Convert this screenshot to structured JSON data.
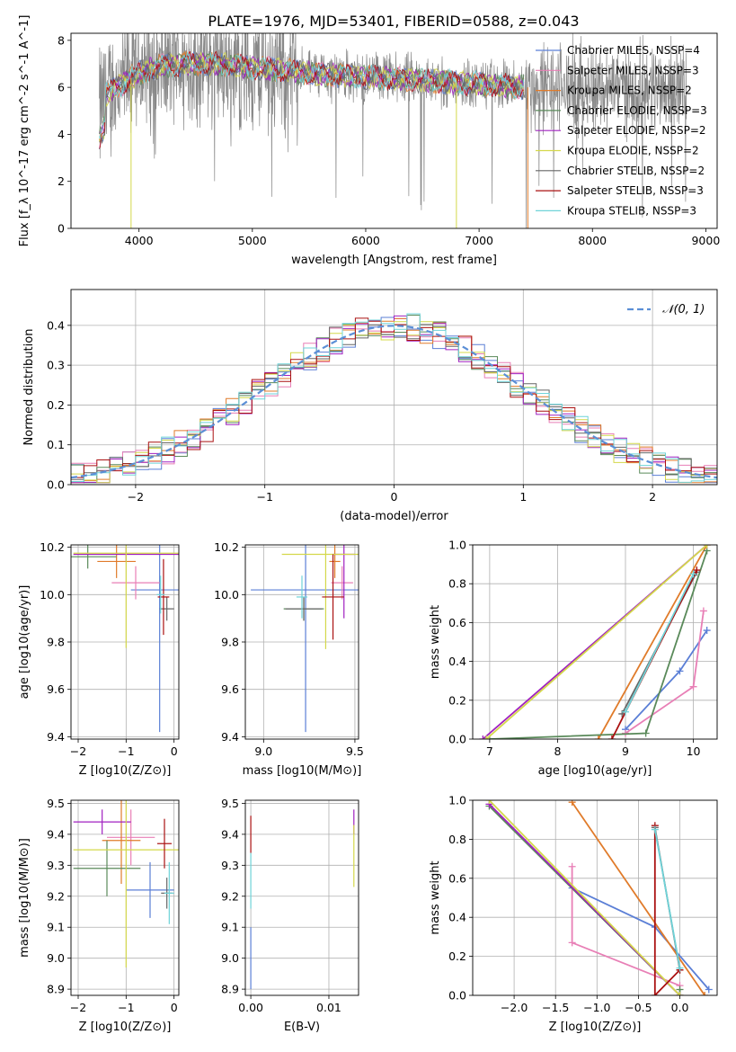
{
  "figure": {
    "title": "PLATE=1976, MJD=53401, FIBERID=0588, z=0.043"
  },
  "colors": {
    "Chabrier MILES": "#5b7fd6",
    "Salpeter MILES": "#e87fb6",
    "Kroupa MILES": "#e07b2a",
    "Chabrier ELODIE": "#5a8a5a",
    "Salpeter ELODIE": "#a020c0",
    "Kroupa ELODIE": "#d4d84a",
    "Chabrier STELIB": "#666666",
    "Salpeter STELIB": "#aa1111",
    "Kroupa STELIB": "#6fd3d8",
    "data": "#888888",
    "gaussian": "#5b8fd6"
  },
  "chart_data": [
    {
      "panel": "spectrum",
      "type": "line",
      "xlabel": "wavelength [Angstrom, rest frame]",
      "ylabel": "Flux [f_λ 10^-17 erg cm^-2 s^-1 A^-1]",
      "xlim": [
        3400,
        9100
      ],
      "ylim": [
        0,
        8.3
      ],
      "xticks": [
        4000,
        5000,
        6000,
        7000,
        8000,
        9000
      ],
      "yticks": [
        0,
        2,
        4,
        6,
        8
      ],
      "legend_position": "upper right",
      "legend": [
        "Chabrier MILES, N_SSP=4",
        "Salpeter MILES, N_SSP=3",
        "Kroupa MILES, N_SSP=2",
        "Chabrier ELODIE, N_SSP=3",
        "Salpeter ELODIE, N_SSP=2",
        "Kroupa ELODIE, N_SSP=2",
        "Chabrier STELIB, N_SSP=2",
        "Salpeter STELIB, N_SSP=3",
        "Kroupa STELIB, N_SSP=3"
      ],
      "continuum": {
        "x": [
          3650,
          3700,
          3800,
          3900,
          4000,
          4200,
          4400,
          4600,
          4800,
          5000,
          5200,
          5500,
          6000,
          6500,
          7000,
          7400
        ],
        "y": [
          5.0,
          5.6,
          6.0,
          6.3,
          6.6,
          6.9,
          7.0,
          7.0,
          6.95,
          6.85,
          6.75,
          6.6,
          6.45,
          6.3,
          6.15,
          6.0
        ]
      }
    },
    {
      "panel": "residuals",
      "type": "histogram",
      "xlabel": "(data-model)/error",
      "ylabel": "Normed distribution",
      "xlim": [
        -2.5,
        2.5
      ],
      "ylim": [
        0,
        0.49
      ],
      "xticks": [
        -2,
        -1,
        0,
        1,
        2
      ],
      "yticks": [
        0.0,
        0.1,
        0.2,
        0.3,
        0.4
      ],
      "legend": [
        "𝒩(0, 1)"
      ],
      "legend_position": "upper right",
      "grid": true
    },
    {
      "panel": "age_vs_Z",
      "type": "errorbar",
      "xlabel": "Z [log10(Z/Z⊙)]",
      "ylabel": "age [log10(age/yr)]",
      "xlim": [
        -2.15,
        0.1
      ],
      "ylim": [
        9.39,
        10.21
      ],
      "xticks": [
        -2,
        -1,
        0
      ],
      "yticks": [
        9.4,
        9.6,
        9.8,
        10.0,
        10.2
      ],
      "points": [
        {
          "model": "Chabrier MILES",
          "x": -0.3,
          "y": 10.02,
          "xerr": 0.6,
          "yerr": 0.6
        },
        {
          "model": "Salpeter MILES",
          "x": -0.8,
          "y": 10.05,
          "xerr": 0.5,
          "yerr": 0.07
        },
        {
          "model": "Kroupa MILES",
          "x": -1.2,
          "y": 10.14,
          "xerr": 0.4,
          "yerr": 0.07
        },
        {
          "model": "Chabrier ELODIE",
          "x": -1.8,
          "y": 10.16,
          "xerr": 0.6,
          "yerr": 0.05
        },
        {
          "model": "Salpeter ELODIE",
          "x": -1.0,
          "y": 10.17,
          "xerr": 1.1,
          "yerr": 0.03
        },
        {
          "model": "Kroupa ELODIE",
          "x": -1.0,
          "y": 10.175,
          "xerr": 1.1,
          "yerr": 0.4
        },
        {
          "model": "Chabrier STELIB",
          "x": -0.15,
          "y": 9.94,
          "xerr": 0.15,
          "yerr": 0.05
        },
        {
          "model": "Salpeter STELIB",
          "x": -0.22,
          "y": 9.99,
          "xerr": 0.12,
          "yerr": 0.16
        },
        {
          "model": "Kroupa STELIB",
          "x": -0.28,
          "y": 10.0,
          "xerr": 0.08,
          "yerr": 0.08
        }
      ]
    },
    {
      "panel": "age_vs_mass",
      "type": "errorbar",
      "xlabel": "mass [log10(M/M⊙)]",
      "xlim": [
        8.9,
        9.52
      ],
      "ylim": [
        9.39,
        10.21
      ],
      "xticks": [
        9.0,
        9.5
      ],
      "yticks": [
        9.4,
        9.6,
        9.8,
        10.0,
        10.2
      ],
      "points": [
        {
          "model": "Chabrier MILES",
          "x": 9.23,
          "y": 10.02,
          "xerr": 0.3,
          "yerr": 0.6
        },
        {
          "model": "Salpeter MILES",
          "x": 9.43,
          "y": 10.05,
          "xerr": 0.06,
          "yerr": 0.07
        },
        {
          "model": "Kroupa MILES",
          "x": 9.39,
          "y": 10.14,
          "xerr": 0.03,
          "yerr": 0.07
        },
        {
          "model": "Chabrier ELODIE",
          "x": 9.22,
          "y": 9.94,
          "xerr": 0.11,
          "yerr": 0.05
        },
        {
          "model": "Salpeter ELODIE",
          "x": 9.44,
          "y": 10.17,
          "xerr": 0.06,
          "yerr": 0.27
        },
        {
          "model": "Kroupa ELODIE",
          "x": 9.34,
          "y": 10.17,
          "xerr": 0.24,
          "yerr": 0.4
        },
        {
          "model": "Chabrier STELIB",
          "x": 9.22,
          "y": 9.94,
          "xerr": 0.1,
          "yerr": 0.05
        },
        {
          "model": "Salpeter STELIB",
          "x": 9.38,
          "y": 9.99,
          "xerr": 0.06,
          "yerr": 0.18
        },
        {
          "model": "Kroupa STELIB",
          "x": 9.21,
          "y": 9.99,
          "xerr": 0.03,
          "yerr": 0.09
        }
      ]
    },
    {
      "panel": "weight_vs_age",
      "type": "line",
      "xlabel": "age [log10(age/yr)]",
      "ylabel": "mass weight",
      "xlim": [
        6.75,
        10.35
      ],
      "ylim": [
        0,
        1.0
      ],
      "xticks": [
        7,
        8,
        9,
        10
      ],
      "yticks": [
        0.0,
        0.2,
        0.4,
        0.6,
        0.8,
        1.0
      ],
      "series": [
        {
          "model": "Chabrier MILES",
          "x": [
            9.0,
            9.8,
            10.2
          ],
          "y": [
            0.05,
            0.35,
            0.56
          ]
        },
        {
          "model": "Salpeter MILES",
          "x": [
            9.0,
            10.0,
            10.15
          ],
          "y": [
            0.03,
            0.27,
            0.66
          ]
        },
        {
          "model": "Kroupa MILES",
          "x": [
            8.6,
            10.2
          ],
          "y": [
            0.0,
            1.0
          ]
        },
        {
          "model": "Chabrier ELODIE",
          "x": [
            7.0,
            9.3,
            10.2
          ],
          "y": [
            0.0,
            0.03,
            0.97
          ]
        },
        {
          "model": "Salpeter ELODIE",
          "x": [
            6.9,
            10.2
          ],
          "y": [
            0.0,
            1.0
          ]
        },
        {
          "model": "Kroupa ELODIE",
          "x": [
            6.95,
            10.2
          ],
          "y": [
            0.0,
            1.0
          ]
        },
        {
          "model": "Chabrier STELIB",
          "x": [
            8.95,
            10.05
          ],
          "y": [
            0.13,
            0.86
          ]
        },
        {
          "model": "Salpeter STELIB",
          "x": [
            8.8,
            10.05
          ],
          "y": [
            0.0,
            0.87
          ]
        },
        {
          "model": "Kroupa STELIB",
          "x": [
            9.0,
            10.0
          ],
          "y": [
            0.14,
            0.85
          ]
        }
      ]
    },
    {
      "panel": "mass_vs_Z",
      "type": "errorbar",
      "xlabel": "Z [log10(Z/Z⊙)]",
      "ylabel": "mass [log10(M/M⊙)]",
      "xlim": [
        -2.15,
        0.1
      ],
      "ylim": [
        8.88,
        9.51
      ],
      "xticks": [
        -2,
        -1,
        0
      ],
      "yticks": [
        8.9,
        9.0,
        9.1,
        9.2,
        9.3,
        9.4,
        9.5
      ],
      "points": [
        {
          "model": "Chabrier MILES",
          "x": -0.5,
          "y": 9.22,
          "xerr": 0.5,
          "yerr": 0.09
        },
        {
          "model": "Salpeter MILES",
          "x": -0.9,
          "y": 9.39,
          "xerr": 0.5,
          "yerr": 0.09
        },
        {
          "model": "Kroupa MILES",
          "x": -1.1,
          "y": 9.38,
          "xerr": 0.4,
          "yerr": 0.14
        },
        {
          "model": "Chabrier ELODIE",
          "x": -1.4,
          "y": 9.29,
          "xerr": 0.7,
          "yerr": 0.09
        },
        {
          "model": "Salpeter ELODIE",
          "x": -1.5,
          "y": 9.44,
          "xerr": 0.6,
          "yerr": 0.04
        },
        {
          "model": "Kroupa ELODIE",
          "x": -1.0,
          "y": 9.35,
          "xerr": 1.1,
          "yerr": 0.38
        },
        {
          "model": "Chabrier STELIB",
          "x": -0.15,
          "y": 9.21,
          "xerr": 0.12,
          "yerr": 0.05
        },
        {
          "model": "Salpeter STELIB",
          "x": -0.2,
          "y": 9.37,
          "xerr": 0.15,
          "yerr": 0.08
        },
        {
          "model": "Kroupa STELIB",
          "x": -0.1,
          "y": 9.21,
          "xerr": 0.1,
          "yerr": 0.1
        }
      ]
    },
    {
      "panel": "mass_vs_EBV",
      "type": "errorbar",
      "xlabel": "E(B-V)",
      "xlim": [
        -0.0007,
        0.0138
      ],
      "ylim": [
        8.88,
        9.51
      ],
      "xticks": [
        0.0,
        0.01
      ],
      "xticklabels": [
        "0.00",
        "0.01"
      ],
      "yticks": [
        8.9,
        9.0,
        9.1,
        9.2,
        9.3,
        9.4,
        9.5
      ],
      "points": [
        {
          "model": "Chabrier MILES",
          "x": 0.0,
          "y": 9.0,
          "xerr": 0,
          "yerr": 0.1
        },
        {
          "model": "Salpeter ELODIE",
          "x": 0.0132,
          "y": 9.44,
          "xerr": 0,
          "yerr": 0.04
        },
        {
          "model": "Kroupa ELODIE",
          "x": 0.0132,
          "y": 9.33,
          "xerr": 0,
          "yerr": 0.1
        },
        {
          "model": "Salpeter STELIB",
          "x": 0.0,
          "y": 9.4,
          "xerr": 0,
          "yerr": 0.06
        },
        {
          "model": "Kroupa STELIB",
          "x": 0.0,
          "y": 9.25,
          "xerr": 0,
          "yerr": 0.09
        }
      ]
    },
    {
      "panel": "weight_vs_Z",
      "type": "line",
      "xlabel": "Z [log10(Z/Z⊙)]",
      "ylabel": "mass weight",
      "xlim": [
        -2.5,
        0.45
      ],
      "ylim": [
        0,
        1.0
      ],
      "xticks": [
        -2.0,
        -1.5,
        -1.0,
        -0.5,
        0.0
      ],
      "xticklabels": [
        "−2.0",
        "−1.5",
        "−1.0",
        "−0.5",
        "0.0"
      ],
      "yticks": [
        0.0,
        0.2,
        0.4,
        0.6,
        0.8,
        1.0
      ],
      "series": [
        {
          "model": "Chabrier MILES",
          "x": [
            -1.3,
            -0.3,
            0.35
          ],
          "y": [
            0.55,
            0.35,
            0.03
          ]
        },
        {
          "model": "Salpeter MILES",
          "x": [
            -1.3,
            -1.3,
            0.0
          ],
          "y": [
            0.66,
            0.27,
            0.05
          ]
        },
        {
          "model": "Kroupa MILES",
          "x": [
            -1.3,
            0.3
          ],
          "y": [
            0.99,
            0.0
          ]
        },
        {
          "model": "Chabrier ELODIE",
          "x": [
            -2.3,
            0.0,
            0.0
          ],
          "y": [
            0.97,
            0.0,
            0.03
          ]
        },
        {
          "model": "Salpeter ELODIE",
          "x": [
            -2.3,
            0.0
          ],
          "y": [
            0.98,
            0.0
          ]
        },
        {
          "model": "Kroupa ELODIE",
          "x": [
            -2.3,
            0.0
          ],
          "y": [
            1.0,
            0.0
          ]
        },
        {
          "model": "Chabrier STELIB",
          "x": [
            -0.3,
            0.0
          ],
          "y": [
            0.86,
            0.13
          ]
        },
        {
          "model": "Salpeter STELIB",
          "x": [
            -0.3,
            -0.3,
            0.0
          ],
          "y": [
            0.87,
            0.0,
            0.13
          ]
        },
        {
          "model": "Kroupa STELIB",
          "x": [
            -0.3,
            0.0
          ],
          "y": [
            0.85,
            0.14
          ]
        }
      ]
    }
  ]
}
